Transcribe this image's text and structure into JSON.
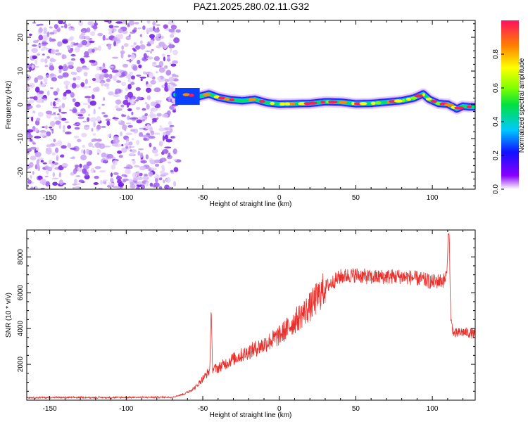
{
  "title": "PAZ1.2025.280.02.11.G32",
  "chart_data": [
    {
      "type": "heatmap",
      "title": "PAZ1.2025.280.02.11.G32",
      "xlabel": "Height of straight line (km)",
      "ylabel": "Frequency (Hz)",
      "xlim": [
        -165,
        128
      ],
      "ylim": [
        -25,
        25
      ],
      "xticks": [
        -150,
        -100,
        -50,
        0,
        50,
        100
      ],
      "yticks": [
        -20,
        -10,
        0,
        10,
        20
      ],
      "noise_region_x": [
        -165,
        -68
      ],
      "ridge": {
        "x": [
          -68,
          -60,
          -52,
          -46,
          -40,
          -32,
          -24,
          -16,
          -8,
          0,
          10,
          20,
          30,
          40,
          50,
          60,
          70,
          80,
          88,
          94,
          98,
          104,
          110,
          116,
          120,
          124,
          128
        ],
        "freq": [
          3.0,
          3.0,
          2.5,
          3.2,
          2.2,
          1.5,
          1.2,
          1.6,
          0.6,
          0.2,
          0.3,
          0.4,
          0.9,
          0.8,
          0.3,
          0.4,
          0.8,
          1.2,
          2.0,
          3.2,
          1.6,
          0.4,
          0.2,
          -1.2,
          -0.4,
          -0.6,
          -0.6
        ]
      },
      "colorbar": {
        "label": "Normalized spectral amplitude",
        "ticks": [
          "0.0",
          "0.2",
          "0.4",
          "0.6",
          "0.8"
        ],
        "range": [
          0,
          1
        ]
      }
    },
    {
      "type": "line",
      "xlabel": "Height of straight line (km)",
      "ylabel": "SNR (10 * v/v)",
      "xlim": [
        -165,
        128
      ],
      "ylim": [
        0,
        9500
      ],
      "xticks": [
        -150,
        -100,
        -50,
        0,
        50,
        100
      ],
      "yticks": [
        2000,
        4000,
        6000,
        8000
      ],
      "color": "#e8302c",
      "trend": {
        "x": [
          -165,
          -110,
          -70,
          -62,
          -55,
          -50,
          -45,
          -40,
          -30,
          -20,
          -10,
          0,
          10,
          20,
          30,
          40,
          50,
          60,
          70,
          80,
          90,
          100,
          108,
          110,
          111,
          112,
          114,
          120,
          128
        ],
        "y": [
          150,
          150,
          170,
          350,
          700,
          1200,
          1700,
          1800,
          2300,
          2700,
          3100,
          3600,
          4400,
          5200,
          6300,
          6900,
          7000,
          6850,
          6900,
          6900,
          6800,
          6600,
          6700,
          7200,
          9300,
          4500,
          3700,
          3800,
          3700
        ]
      },
      "spikes": [
        {
          "x": -44.5,
          "y": 5200
        },
        {
          "x": 110.5,
          "y": 9400
        }
      ]
    }
  ]
}
